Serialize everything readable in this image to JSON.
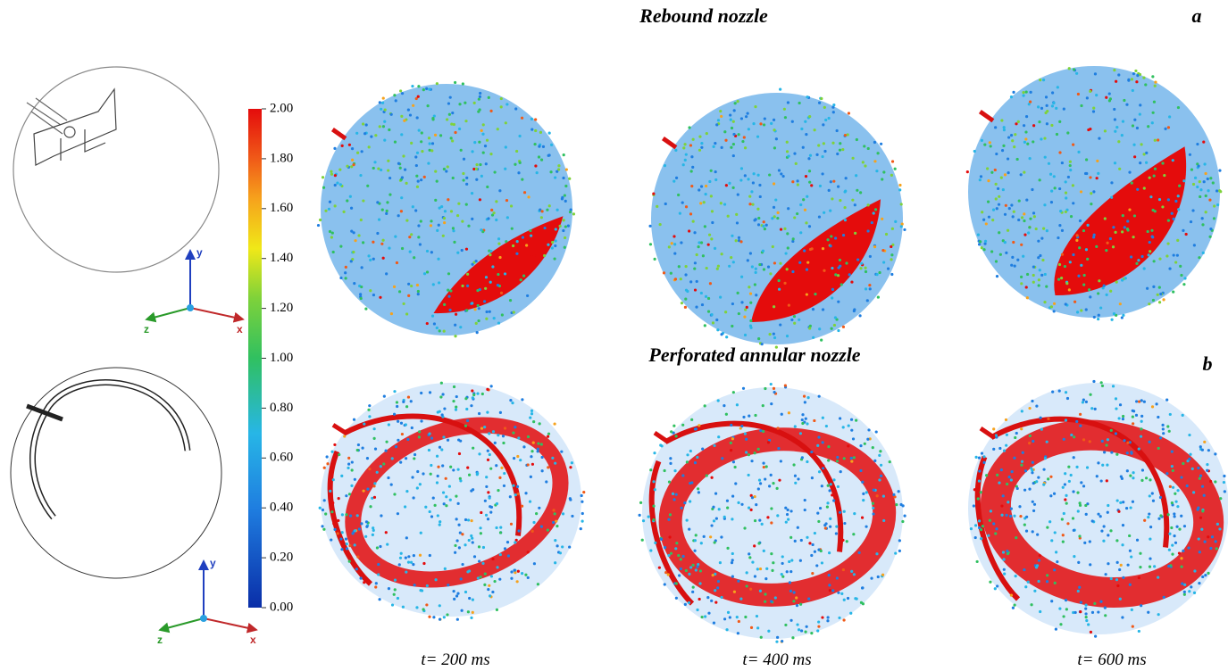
{
  "header": {
    "title_a": "Rebound nozzle",
    "label_a": "a",
    "title_b": "Perforated annular nozzle",
    "label_b": "b"
  },
  "colorbar": {
    "lim": [
      0,
      2
    ],
    "ticks": [
      {
        "value": 0,
        "label": "0.00"
      },
      {
        "value": 0.2,
        "label": "0.20"
      },
      {
        "value": 0.4,
        "label": "0.40"
      },
      {
        "value": 0.6,
        "label": "0.60"
      },
      {
        "value": 0.8,
        "label": "0.80"
      },
      {
        "value": 1,
        "label": "1.00"
      },
      {
        "value": 1.2,
        "label": "1.20"
      },
      {
        "value": 1.4,
        "label": "1.40"
      },
      {
        "value": 1.6,
        "label": "1.60"
      },
      {
        "value": 1.8,
        "label": "1.80"
      },
      {
        "value": 2,
        "label": "2.00"
      }
    ]
  },
  "axes_icons": [
    {
      "y": "y",
      "z": "z",
      "x": "x"
    },
    {
      "y": "y",
      "z": "z",
      "x": "x"
    }
  ],
  "times": [
    "t=  200 ms",
    "t=  400 ms",
    "t=  600 ms"
  ]
}
